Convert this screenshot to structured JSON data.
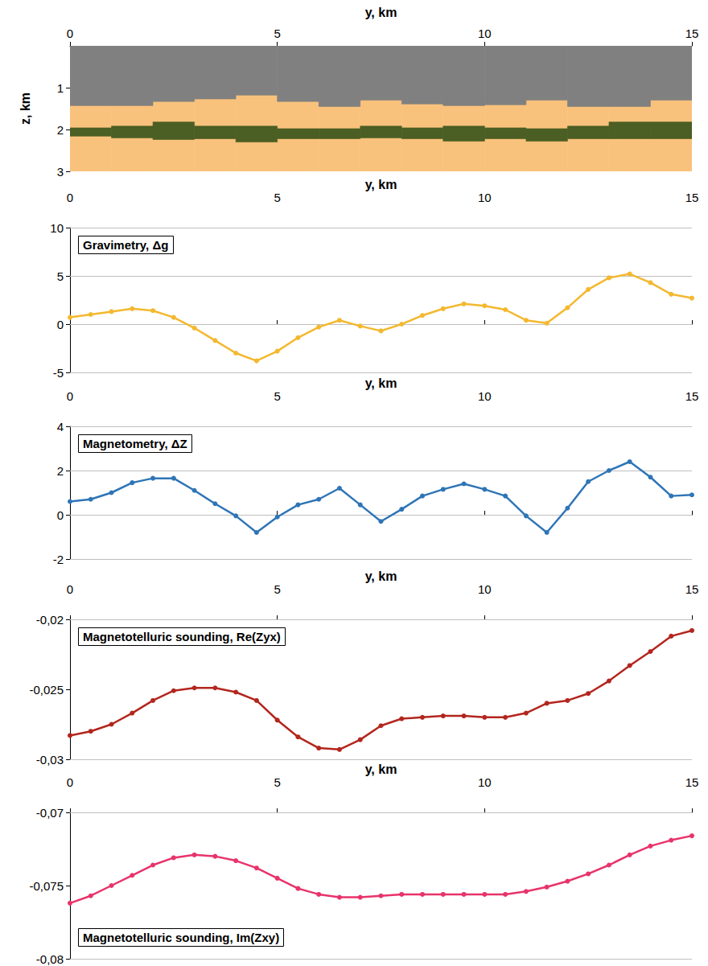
{
  "chart_data": [
    {
      "type": "section",
      "x_label": "y, km",
      "y_label": "z, km",
      "xlim": [
        0,
        15
      ],
      "xticks": [
        0,
        5,
        10,
        15
      ],
      "ylim": [
        0,
        3
      ],
      "yticks": [
        1,
        2,
        3
      ],
      "boundaries": [
        0,
        1,
        2,
        3,
        4,
        5,
        6,
        7,
        8,
        9,
        10,
        11,
        12,
        13,
        14,
        15
      ],
      "layers": [
        {
          "color": "#f9c27c",
          "top": [
            0,
            0,
            0,
            0,
            0,
            0,
            0,
            0,
            0,
            0,
            0,
            0,
            0,
            0,
            0
          ],
          "bottom": [
            3,
            3,
            3,
            3,
            3,
            3,
            3,
            3,
            3,
            3,
            3,
            3,
            3,
            3,
            3
          ]
        },
        {
          "color": "#808080",
          "top": [
            0,
            0,
            0,
            0,
            0,
            0,
            0,
            0,
            0,
            0,
            0,
            0,
            0,
            0,
            0
          ],
          "bottom": [
            1.43,
            1.43,
            1.33,
            1.27,
            1.18,
            1.33,
            1.45,
            1.3,
            1.39,
            1.43,
            1.41,
            1.3,
            1.45,
            1.45,
            1.3
          ]
        },
        {
          "color": "#4b5e24",
          "top": [
            1.96,
            1.92,
            1.82,
            1.92,
            1.92,
            1.98,
            1.98,
            1.92,
            1.96,
            1.92,
            1.96,
            1.98,
            1.92,
            1.82,
            1.82
          ],
          "bottom": [
            2.16,
            2.2,
            2.24,
            2.22,
            2.3,
            2.22,
            2.22,
            2.2,
            2.22,
            2.28,
            2.22,
            2.28,
            2.22,
            2.22,
            2.22
          ]
        }
      ]
    },
    {
      "type": "line",
      "title": "Gravimetry, Δg",
      "x_label": "y, km",
      "x": [
        0,
        0.5,
        1,
        1.5,
        2,
        2.5,
        3,
        3.5,
        4,
        4.5,
        5,
        5.5,
        6,
        6.5,
        7,
        7.5,
        8,
        8.5,
        9,
        9.5,
        10,
        10.5,
        11,
        11.5,
        12,
        12.5,
        13,
        13.5,
        14,
        14.5,
        15
      ],
      "series": [
        {
          "color": "#f4b82f",
          "marker": "circle",
          "values": [
            0.7,
            1.0,
            1.3,
            1.6,
            1.4,
            0.7,
            -0.4,
            -1.7,
            -3.0,
            -3.8,
            -2.8,
            -1.4,
            -0.3,
            0.4,
            -0.2,
            -0.7,
            0.0,
            0.9,
            1.6,
            2.1,
            1.9,
            1.5,
            0.4,
            0.1,
            1.7,
            3.6,
            4.8,
            5.2,
            4.3,
            3.1,
            2.7
          ]
        }
      ],
      "xlim": [
        0,
        15
      ],
      "xticks": [
        0,
        5,
        10,
        15
      ],
      "ylim": [
        -5,
        10
      ],
      "yticks": [
        -5,
        0,
        5,
        10
      ],
      "grid": true
    },
    {
      "type": "line",
      "title": "Magnetometry, ΔZ",
      "x_label": "y, km",
      "x": [
        0,
        0.5,
        1,
        1.5,
        2,
        2.5,
        3,
        3.5,
        4,
        4.5,
        5,
        5.5,
        6,
        6.5,
        7,
        7.5,
        8,
        8.5,
        9,
        9.5,
        10,
        10.5,
        11,
        11.5,
        12,
        12.5,
        13,
        13.5,
        14,
        14.5,
        15
      ],
      "series": [
        {
          "color": "#2e75b6",
          "marker": "circle",
          "values": [
            0.6,
            0.7,
            1.0,
            1.45,
            1.65,
            1.65,
            1.1,
            0.5,
            -0.05,
            -0.8,
            -0.1,
            0.45,
            0.7,
            1.2,
            0.45,
            -0.3,
            0.25,
            0.85,
            1.15,
            1.4,
            1.15,
            0.85,
            -0.05,
            -0.8,
            0.3,
            1.5,
            2.0,
            2.4,
            1.7,
            0.85,
            0.9
          ]
        }
      ],
      "xlim": [
        0,
        15
      ],
      "xticks": [
        0,
        5,
        10,
        15
      ],
      "ylim": [
        -2,
        4
      ],
      "yticks": [
        -2,
        0,
        2,
        4
      ],
      "grid": true
    },
    {
      "type": "line",
      "title": "Magnetotelluric sounding, Re(Zyx)",
      "x_label": "y, km",
      "x": [
        0,
        0.5,
        1,
        1.5,
        2,
        2.5,
        3,
        3.5,
        4,
        4.5,
        5,
        5.5,
        6,
        6.5,
        7,
        7.5,
        8,
        8.5,
        9,
        9.5,
        10,
        10.5,
        11,
        11.5,
        12,
        12.5,
        13,
        13.5,
        14,
        14.5,
        15
      ],
      "series": [
        {
          "color": "#b3261e",
          "marker": "circle",
          "values": [
            -0.0283,
            -0.028,
            -0.0275,
            -0.0267,
            -0.0258,
            -0.0251,
            -0.0249,
            -0.0249,
            -0.0252,
            -0.0258,
            -0.0272,
            -0.0284,
            -0.0292,
            -0.0293,
            -0.0286,
            -0.0276,
            -0.0271,
            -0.027,
            -0.0269,
            -0.0269,
            -0.027,
            -0.027,
            -0.0267,
            -0.026,
            -0.0258,
            -0.0253,
            -0.0244,
            -0.0233,
            -0.0223,
            -0.0212,
            -0.0208
          ]
        }
      ],
      "xlim": [
        0,
        15
      ],
      "xticks": [
        0,
        5,
        10,
        15
      ],
      "ylim": [
        -0.03,
        -0.02
      ],
      "yticks": [
        {
          "value": -0.03,
          "label": "-0,03"
        },
        {
          "value": -0.025,
          "label": "-0,025"
        },
        {
          "value": -0.02,
          "label": "-0,02"
        }
      ],
      "grid": true
    },
    {
      "type": "line",
      "title": "Magnetotelluric sounding, Im(Zxy)",
      "x_label": "y, km",
      "x": [
        0,
        0.5,
        1,
        1.5,
        2,
        2.5,
        3,
        3.5,
        4,
        4.5,
        5,
        5.5,
        6,
        6.5,
        7,
        7.5,
        8,
        8.5,
        9,
        9.5,
        10,
        10.5,
        11,
        11.5,
        12,
        12.5,
        13,
        13.5,
        14,
        14.5,
        15
      ],
      "series": [
        {
          "color": "#e8336b",
          "marker": "circle",
          "values": [
            -0.0762,
            -0.0757,
            -0.075,
            -0.0743,
            -0.0736,
            -0.0731,
            -0.0729,
            -0.073,
            -0.0733,
            -0.0738,
            -0.0745,
            -0.0752,
            -0.0756,
            -0.0758,
            -0.0758,
            -0.0757,
            -0.0756,
            -0.0756,
            -0.0756,
            -0.0756,
            -0.0756,
            -0.0756,
            -0.0754,
            -0.0751,
            -0.0747,
            -0.0742,
            -0.0736,
            -0.0729,
            -0.0723,
            -0.0719,
            -0.0716
          ]
        }
      ],
      "xlim": [
        0,
        15
      ],
      "xticks": [
        0,
        5,
        10,
        15
      ],
      "ylim": [
        -0.08,
        -0.07
      ],
      "yticks": [
        {
          "value": -0.08,
          "label": "-0,08"
        },
        {
          "value": -0.075,
          "label": "-0,075"
        },
        {
          "value": -0.07,
          "label": "-0,07"
        }
      ],
      "grid": true
    }
  ]
}
